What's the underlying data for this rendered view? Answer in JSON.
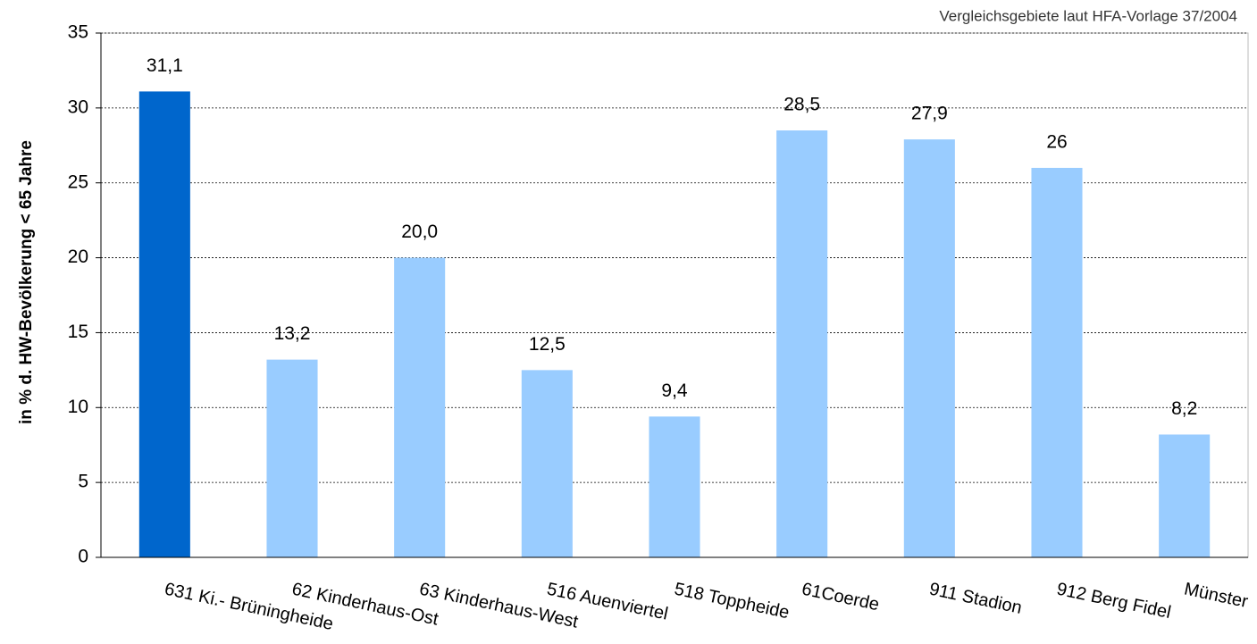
{
  "chart_data": {
    "type": "bar",
    "subtitle": "Vergleichsgebiete laut HFA-Vorlage 37/2004",
    "y_label": "in % d. HW-Bevölkerung < 65 Jahre",
    "categories": [
      "631 Ki.- Brüningheide",
      "62 Kinderhaus-Ost",
      "63 Kinderhaus-West",
      "516 Auenviertel",
      "518 Toppheide",
      "61Coerde",
      "911 Stadion",
      "912 Berg Fidel",
      "Münster"
    ],
    "values": [
      31.1,
      13.2,
      20.0,
      12.5,
      9.4,
      28.5,
      27.9,
      26,
      8.2
    ],
    "value_labels": [
      "31,1",
      "13,2",
      "20,0",
      "12,5",
      "9,4",
      "28,5",
      "27,9",
      "26",
      "8,2"
    ],
    "colors": [
      "#0066cc",
      "#99ccff",
      "#99ccff",
      "#99ccff",
      "#99ccff",
      "#99ccff",
      "#99ccff",
      "#99ccff",
      "#99ccff"
    ],
    "ylim": [
      0,
      35
    ],
    "yticks": [
      0,
      5,
      10,
      15,
      20,
      25,
      30,
      35
    ],
    "grid": true
  }
}
